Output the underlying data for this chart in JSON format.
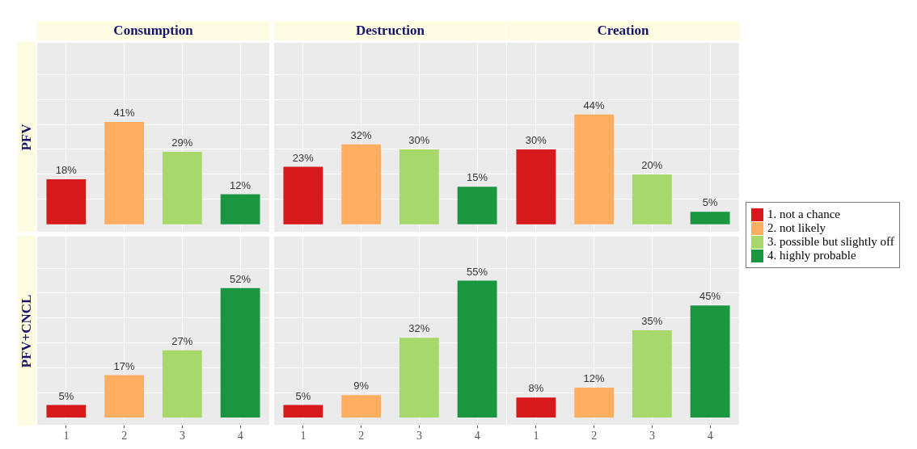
{
  "chart_data": [
    {
      "type": "bar",
      "title": "Consumption",
      "ylabel": "PFV",
      "categories": [
        "1",
        "2",
        "3",
        "4"
      ],
      "ylim": [
        -3,
        73
      ],
      "grid": true,
      "tick_labels": false,
      "legend": "right",
      "series": [
        {
          "name": "1. not a chance",
          "color": "#d7191c",
          "values": [
            18,
            null,
            null,
            null
          ],
          "value_labels": [
            "18%",
            null,
            null,
            null
          ]
        },
        {
          "name": "2. not likely",
          "color": "#fdae61",
          "values": [
            null,
            41,
            null,
            null
          ],
          "value_labels": [
            null,
            "41%",
            null,
            null
          ]
        },
        {
          "name": "3. possible but slightly off",
          "color": "#a6d96a",
          "values": [
            null,
            null,
            29,
            null
          ],
          "value_labels": [
            null,
            null,
            "29%",
            null
          ]
        },
        {
          "name": "4. highly probable",
          "color": "#1a9641",
          "values": [
            null,
            null,
            null,
            12
          ],
          "value_labels": [
            null,
            null,
            null,
            "12%"
          ]
        }
      ]
    },
    {
      "type": "bar",
      "title": "Destruction",
      "categories": [
        "1",
        "2",
        "3",
        "4"
      ],
      "ylim": [
        -3,
        73
      ],
      "grid": true,
      "tick_labels": false,
      "series": [
        {
          "color": "#d7191c",
          "values": [
            23,
            null,
            null,
            null
          ],
          "value_labels": [
            "23%",
            null,
            null,
            null
          ]
        },
        {
          "color": "#fdae61",
          "values": [
            null,
            32,
            null,
            null
          ],
          "value_labels": [
            null,
            "32%",
            null,
            null
          ]
        },
        {
          "color": "#a6d96a",
          "values": [
            null,
            null,
            30,
            null
          ],
          "value_labels": [
            null,
            null,
            "30%",
            null
          ]
        },
        {
          "color": "#1a9641",
          "values": [
            null,
            null,
            null,
            15
          ],
          "value_labels": [
            null,
            null,
            null,
            "15%"
          ]
        }
      ]
    },
    {
      "type": "bar",
      "title": "Creation",
      "categories": [
        "1",
        "2",
        "3",
        "4"
      ],
      "ylim": [
        -3,
        73
      ],
      "grid": true,
      "tick_labels": false,
      "series": [
        {
          "color": "#d7191c",
          "values": [
            30,
            null,
            null,
            null
          ],
          "value_labels": [
            "30%",
            null,
            null,
            null
          ]
        },
        {
          "color": "#fdae61",
          "values": [
            null,
            44,
            null,
            null
          ],
          "value_labels": [
            null,
            "44%",
            null,
            null
          ]
        },
        {
          "color": "#a6d96a",
          "values": [
            null,
            null,
            20,
            null
          ],
          "value_labels": [
            null,
            null,
            "20%",
            null
          ]
        },
        {
          "color": "#1a9641",
          "values": [
            null,
            null,
            null,
            5
          ],
          "value_labels": [
            null,
            null,
            null,
            "5%"
          ]
        }
      ]
    },
    {
      "type": "bar",
      "ylabel": "PFV+CNCL",
      "categories": [
        "1",
        "2",
        "3",
        "4"
      ],
      "ylim": [
        -3,
        73
      ],
      "grid": true,
      "tick_labels": "x",
      "series": [
        {
          "color": "#d7191c",
          "values": [
            5,
            null,
            null,
            null
          ],
          "value_labels": [
            "5%",
            null,
            null,
            null
          ]
        },
        {
          "color": "#fdae61",
          "values": [
            null,
            17,
            null,
            null
          ],
          "value_labels": [
            null,
            "17%",
            null,
            null
          ]
        },
        {
          "color": "#a6d96a",
          "values": [
            null,
            null,
            27,
            null
          ],
          "value_labels": [
            null,
            null,
            "27%",
            null
          ]
        },
        {
          "color": "#1a9641",
          "values": [
            null,
            null,
            null,
            52
          ],
          "value_labels": [
            null,
            null,
            null,
            "52%"
          ]
        }
      ]
    },
    {
      "type": "bar",
      "categories": [
        "1",
        "2",
        "3",
        "4"
      ],
      "ylim": [
        -3,
        73
      ],
      "grid": true,
      "tick_labels": "x",
      "series": [
        {
          "color": "#d7191c",
          "values": [
            5,
            null,
            null,
            null
          ],
          "value_labels": [
            "5%",
            null,
            null,
            null
          ]
        },
        {
          "color": "#fdae61",
          "values": [
            null,
            9,
            null,
            null
          ],
          "value_labels": [
            null,
            "9%",
            null,
            null
          ]
        },
        {
          "color": "#a6d96a",
          "values": [
            null,
            null,
            32,
            null
          ],
          "value_labels": [
            null,
            null,
            "32%",
            null
          ]
        },
        {
          "color": "#1a9641",
          "values": [
            null,
            null,
            null,
            55
          ],
          "value_labels": [
            null,
            null,
            null,
            "55%"
          ]
        }
      ]
    },
    {
      "type": "bar",
      "categories": [
        "1",
        "2",
        "3",
        "4"
      ],
      "ylim": [
        -3,
        73
      ],
      "grid": true,
      "tick_labels": "x",
      "series": [
        {
          "color": "#d7191c",
          "values": [
            8,
            null,
            null,
            null
          ],
          "value_labels": [
            "8%",
            null,
            null,
            null
          ]
        },
        {
          "color": "#fdae61",
          "values": [
            null,
            12,
            null,
            null
          ],
          "value_labels": [
            null,
            "12%",
            null,
            null
          ]
        },
        {
          "color": "#a6d96a",
          "values": [
            null,
            null,
            35,
            null
          ],
          "value_labels": [
            null,
            null,
            "35%",
            null
          ]
        },
        {
          "color": "#1a9641",
          "values": [
            null,
            null,
            null,
            45
          ],
          "value_labels": [
            null,
            null,
            null,
            "45%"
          ]
        }
      ]
    }
  ]
}
